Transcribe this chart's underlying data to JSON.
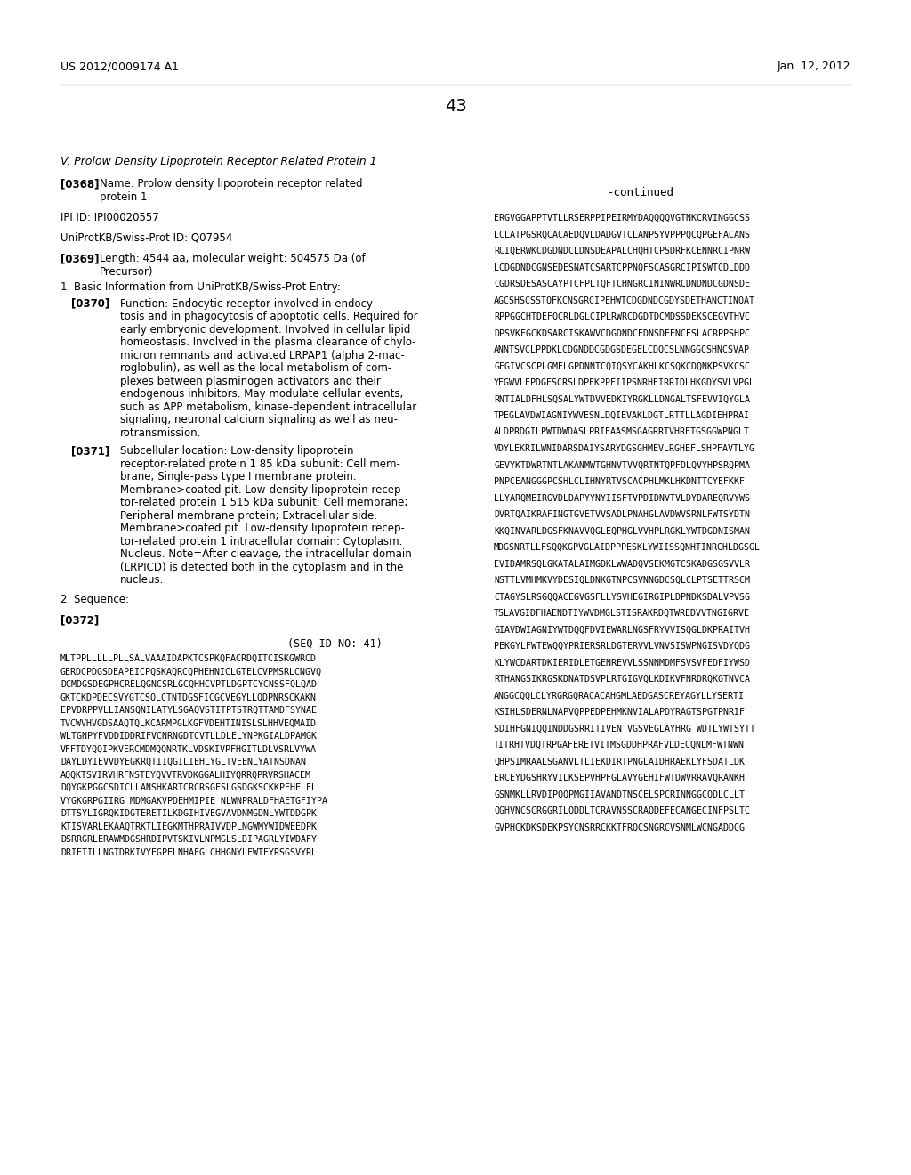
{
  "header_left": "US 2012/0009174 A1",
  "header_right": "Jan. 12, 2012",
  "page_number": "43",
  "bg_color": "#ffffff",
  "section_title": "V. Prolow Density Lipoprotein Receptor Related Protein 1",
  "continued_label": "-continued",
  "seq_id_line": "(SEQ ID NO: 41)",
  "sequence_lines_left": [
    "MLTPPLLLLLPLLSALVAAAIDAPKTCSPKQFACRDQITCISKGWRCD",
    "GERDCPDGSDEAPEICPQSKAQRCQPHEHNICLGTELCVPMSRLCNGVQ",
    "DCMDGSDEGPHCRELQGNCSRLGCQHHCVPTLDGPTCYCNSSFQLQAD",
    "GKTCKDPDECSVYGTCSQLCTNTDGSFICGCVEGYLLQDPNRSCKAKN",
    "EPVDRPPVLLIANSQNILATYLSGAQVSTITPTSTRQTTAMDFSYNAE",
    "TVCWVHVGDSAAQTQLKCARMPGLKGFVDEHTINISLSLHHVEQMAID",
    "WLTGNPYFVDDIDDRIFVCNRNGDTCVTLLDLELYNPKGIALDPAMGK",
    "VFFTDYQQIPKVERCMDMQQNRTKLVDSKIVPFHGITLDLVSRLVYWA",
    "DAYLDYIEVVDYEGKRQTIIQGILIEHLYGLTVEENLYATNSDNAN",
    "AQQKTSVIRVHRFNSTEYQVVTRVDKGGALHIYQRRQPRVRSHACEM",
    "DQYGKPGGCSDICLLANSHKARTCRCRSGFSLGSDGKSCKKPEHELFL",
    "VYGKGRPGIIRG MDMGAKVPDEHMIPIE NLWNPRALDFHAETGFIYPA",
    "DTTSYLIGRQKIDGTERETILKDGIHIVEGVAVDNMGDNLYWTDDGPK",
    "KTISVARLEKAAQTRKTLIEGKMTHPRAIVVDPLNGWMYWIDWEEDPK",
    "DSRRGRLERAWMDGSHRDIPVTSKIVLNPMGLSLDIPAGRLYIWDAFY",
    "DRIETILLNGTDRKIVYEGPELNHAFGLCHHGNYLFWTEYRSGSVYRL"
  ],
  "sequence_lines_right": [
    "ERGVGGAPPTVTLLRSERPPIPEIRMYDAQQQQVGTNKCRVINGGCSS",
    "LCLATPGSRQCACAEDQVLDADGVTCLANPSYVPPPQCQPGEFACANS",
    "RCIQERWKCDGDNDCLDNSDEAPALCHQHTCPSDRFKCENNRCIPNRW",
    "LCDGDNDCGNSEDESNATCSARTCPPNQFSCASGRCIPISWTCDLDDD",
    "CGDRSDESASCAYPTCFPLTQFTCHNGRCININWRCDNDNDCGDNSDE",
    "AGCSHSCSSTQFKCNSGRCIPEHWTCDGDNDCGDYSDETHANCTINQAT",
    "RPPGGCHTDEFQCRLDGLCIPLRWRCDGDTDCMDSSDEKSCEGVTHVC",
    "DPSVKFGCKDSARCISKAWVCDGDNDCEDNSDEENCESLACRPPSHPC",
    "ANNTSVCLPPDKLCDGNDDCGDGSDEGELCDQCSLNNGGCSHNCSVAP",
    "GEGIVCSCPLGMELGPDNNTCQIQSYCAKHLKCSQKCDQNKPSVKCSC",
    "YEGWVLEPDGESCRSLDPFKPPFIIPSNRHEIRRIDLHKGDYSVLVPGL",
    "RNTIALDFHLSQSALYWTDVVEDKIYRGKLLDNGALTSFEVVIQYGLA",
    "TPEGLAVDWIAGNIYWVESNLDQIEVAKLDGTLRTTLLAGDIEHPRAI",
    "ALDPRDGILPWTDWDASLPRIEAASMSGAGRRTVHRETGSGGWPNGLT",
    "VDYLEKRILWNIDARSDAIYSARYDGSGHMEVLRGHEFLSHPFAVTLYG",
    "GEVYKTDWRTNTLAKANMWTGHNVTVVQRTNTQPFDLQVYHPSRQPMA",
    "PNPCEANGGGPCSHLCLIHNYRTVSCACPHLMKLHKDNTTCYEFKKF",
    "LLYARQMEIRGVDLDAPYYNYIISFTVPDIDNVTVLDYDAREQRVYWS",
    "DVRTQAIKRAFINGTGVETVVSADLPNAHGLAVDWVSRNLFWTSYDTN",
    "KKQINVARLDGSFKNAVVQGLEQPHGLVVHPLRGKLYWTDGDNISMAN",
    "MDGSNRTLLFSQQKGPVGLAIDPPPESKLYWIISSQNHTINRCHLDGSGL",
    "EVIDAMRSQLGKATALAIMGDKLWWADQVSEKMGTCSKADGSGSVVLR",
    "NSTTLVMHMKVYDESIQLDNKGTNPCSVNNGDCSQLCLPTSETTRSCM",
    "CTAGYSLRSGQQACEGVGSFLLYSVHEGIRGIPLDPNDKSDALVPVSG",
    "TSLAVGIDFHAENDTIYWVDMGLSTISRAKRDQTWREDVVTNGIGRVE",
    "GIAVDWIAGNIYWTDQQFDVIEWARLNGSFRYVVISQGLDKPRAITVH",
    "PEKGYLFWTEWQQYPRIERSRLDGTERVVLVNVSISWPNGISVDYQDG",
    "KLYWCDARTDKIERIDLETGENREVVLSSNNMDMFSVSVFEDFIYWSD",
    "RTHANGSIKRGSKDNATDSVPLRTGIGVQLKDIKVFNRDRQKGTNVCA",
    "ANGGCQQLCLYRGRGQRACACAHGMLAEDGASCREYAGYLLYSERTI",
    "KSIHLSDERNLNAPVQPPEDPEHMKNVIALAPDYRAGTSPGTPNRIF",
    "SDIHFGNIQQINDDGSRRITIVEN VGSVEGLAYHRG WDTLYWTSYTT",
    "TITRHTVDQTRPGAFERETVITMSGDDHPRAFVLDECQNLMFWTNWN",
    "QHPSIMRAALSGANVLTLIEKDIRTPNGLAIDHRAEKLYFSDATLDK",
    "ERCEYDGSHRYVILKSEPVHPFGLAVYGEHIFWTDWVRRAVQRANKH",
    "GSNMKLLRVDIPQQPMGIIAVANDTNSCELSPCRINNGGCQDLCLLT",
    "QGHVNCSCRGGRILQDDLTCRAVNSSCRAQDEFECANGECINFPSLTC",
    "GVPHCKDKSDEKPSYCNSRRCKKTFRQCSNGRCVSNMLWCNGADDCG"
  ],
  "func_lines": [
    "Function: Endocytic receptor involved in endocy-",
    "tosis and in phagocytosis of apoptotic cells. Required for",
    "early embryonic development. Involved in cellular lipid",
    "homeostasis. Involved in the plasma clearance of chylo-",
    "micron remnants and activated LRPAP1 (alpha 2-mac-",
    "roglobulin), as well as the local metabolism of com-",
    "plexes between plasminogen activators and their",
    "endogenous inhibitors. May modulate cellular events,",
    "such as APP metabolism, kinase-dependent intracellular",
    "signaling, neuronal calcium signaling as well as neu-",
    "rotransmission."
  ],
  "sub_lines": [
    "Subcellular location: Low-density lipoprotein",
    "receptor-related protein 1 85 kDa subunit: Cell mem-",
    "brane; Single-pass type I membrane protein.",
    "Membrane>coated pit. Low-density lipoprotein recep-",
    "tor-related protein 1 515 kDa subunit: Cell membrane;",
    "Peripheral membrane protein; Extracellular side.",
    "Membrane>coated pit. Low-density lipoprotein recep-",
    "tor-related protein 1 intracellular domain: Cytoplasm.",
    "Nucleus. Note=After cleavage, the intracellular domain",
    "(LRPICD) is detected both in the cytoplasm and in the",
    "nucleus."
  ]
}
